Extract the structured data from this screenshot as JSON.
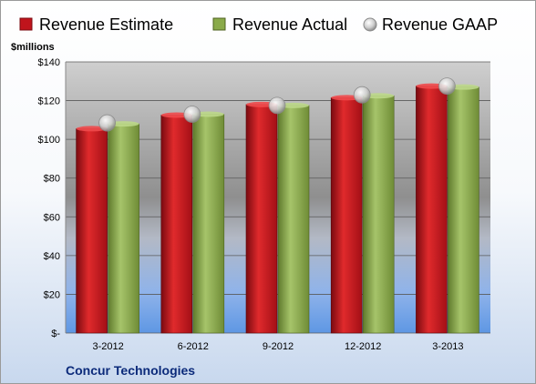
{
  "chart_data": {
    "type": "bar",
    "categories": [
      "3-2012",
      "6-2012",
      "9-2012",
      "12-2012",
      "3-2013"
    ],
    "series": [
      {
        "name": "Revenue Estimate",
        "values": [
          105.5,
          112.5,
          118.0,
          121.5,
          127.5
        ],
        "color": "#c0141c"
      },
      {
        "name": "Revenue Actual",
        "values": [
          108.0,
          113.0,
          117.5,
          122.5,
          127.0
        ],
        "color": "#8aaa4a"
      },
      {
        "name": "Revenue GAAP",
        "kind": "marker",
        "values": [
          108.5,
          113.0,
          117.5,
          123.0,
          127.5
        ],
        "color": "#c8c8c8"
      }
    ],
    "unit_label": "$millions",
    "y_ticks": [
      {
        "value": 0,
        "label": "$-"
      },
      {
        "value": 20,
        "label": "$20"
      },
      {
        "value": 40,
        "label": "$40"
      },
      {
        "value": 60,
        "label": "$60"
      },
      {
        "value": 80,
        "label": "$80"
      },
      {
        "value": 100,
        "label": "$100"
      },
      {
        "value": 120,
        "label": "$120"
      },
      {
        "value": 140,
        "label": "$140"
      }
    ],
    "ylim": [
      0,
      140
    ],
    "grid": true,
    "legend_position": "top",
    "company": "Concur Technologies"
  }
}
